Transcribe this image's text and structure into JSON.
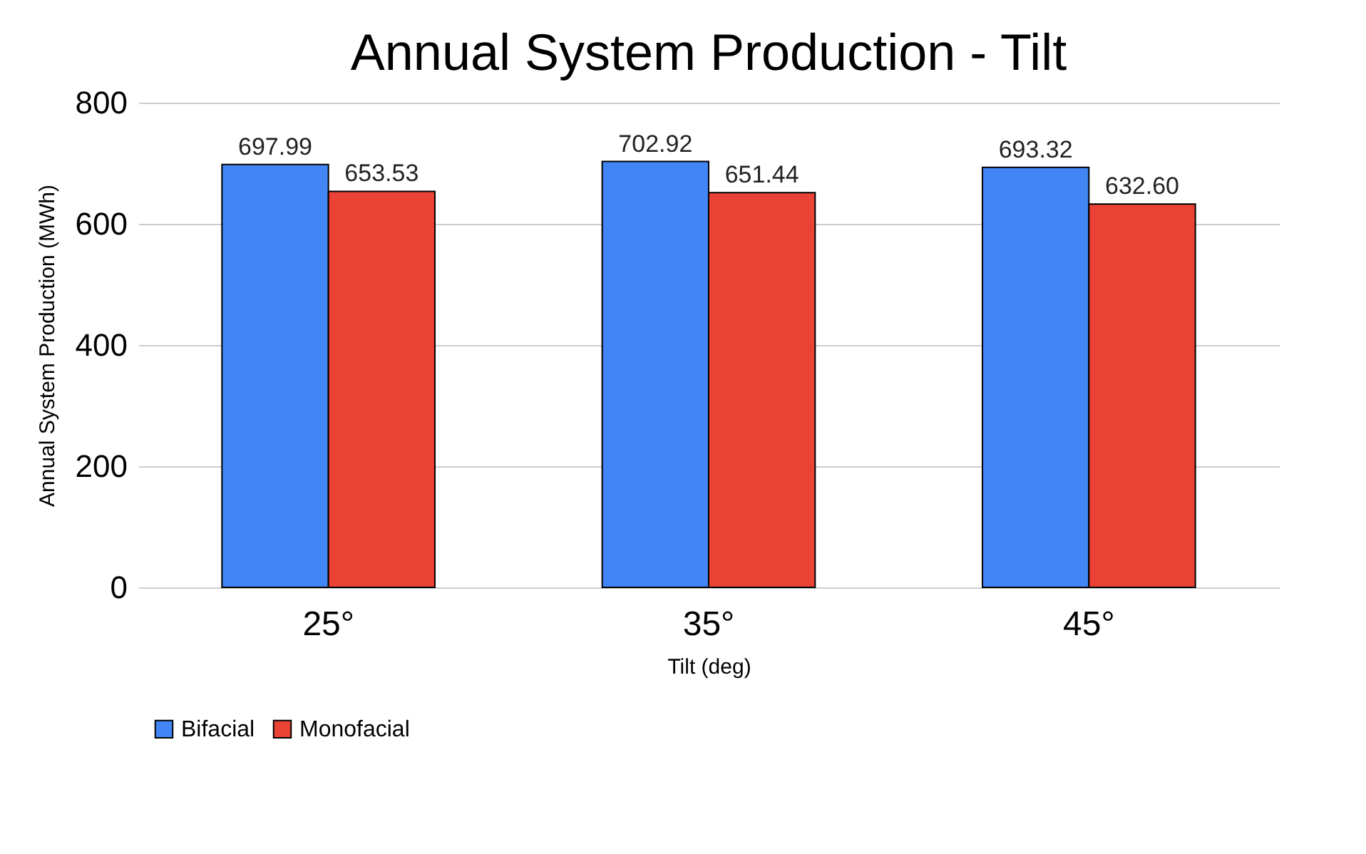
{
  "chart_data": {
    "type": "bar",
    "title": "Annual System Production - Tilt",
    "xlabel": "Tilt (deg)",
    "ylabel": "Annual System Production  (MWh)",
    "categories": [
      "25°",
      "35°",
      "45°"
    ],
    "series": [
      {
        "name": "Bifacial",
        "color": "#4285f4",
        "values": [
          697.99,
          702.92,
          693.32
        ],
        "value_labels": [
          "697.99",
          "702.92",
          "693.32"
        ]
      },
      {
        "name": "Monofacial",
        "color": "#ea4335",
        "values": [
          653.53,
          651.44,
          632.6
        ],
        "value_labels": [
          "653.53",
          "651.44",
          "632.60"
        ]
      }
    ],
    "ylim": [
      0,
      800
    ],
    "yticks": [
      0,
      200,
      400,
      600,
      800
    ],
    "grid": "y",
    "legend": "bottom"
  }
}
